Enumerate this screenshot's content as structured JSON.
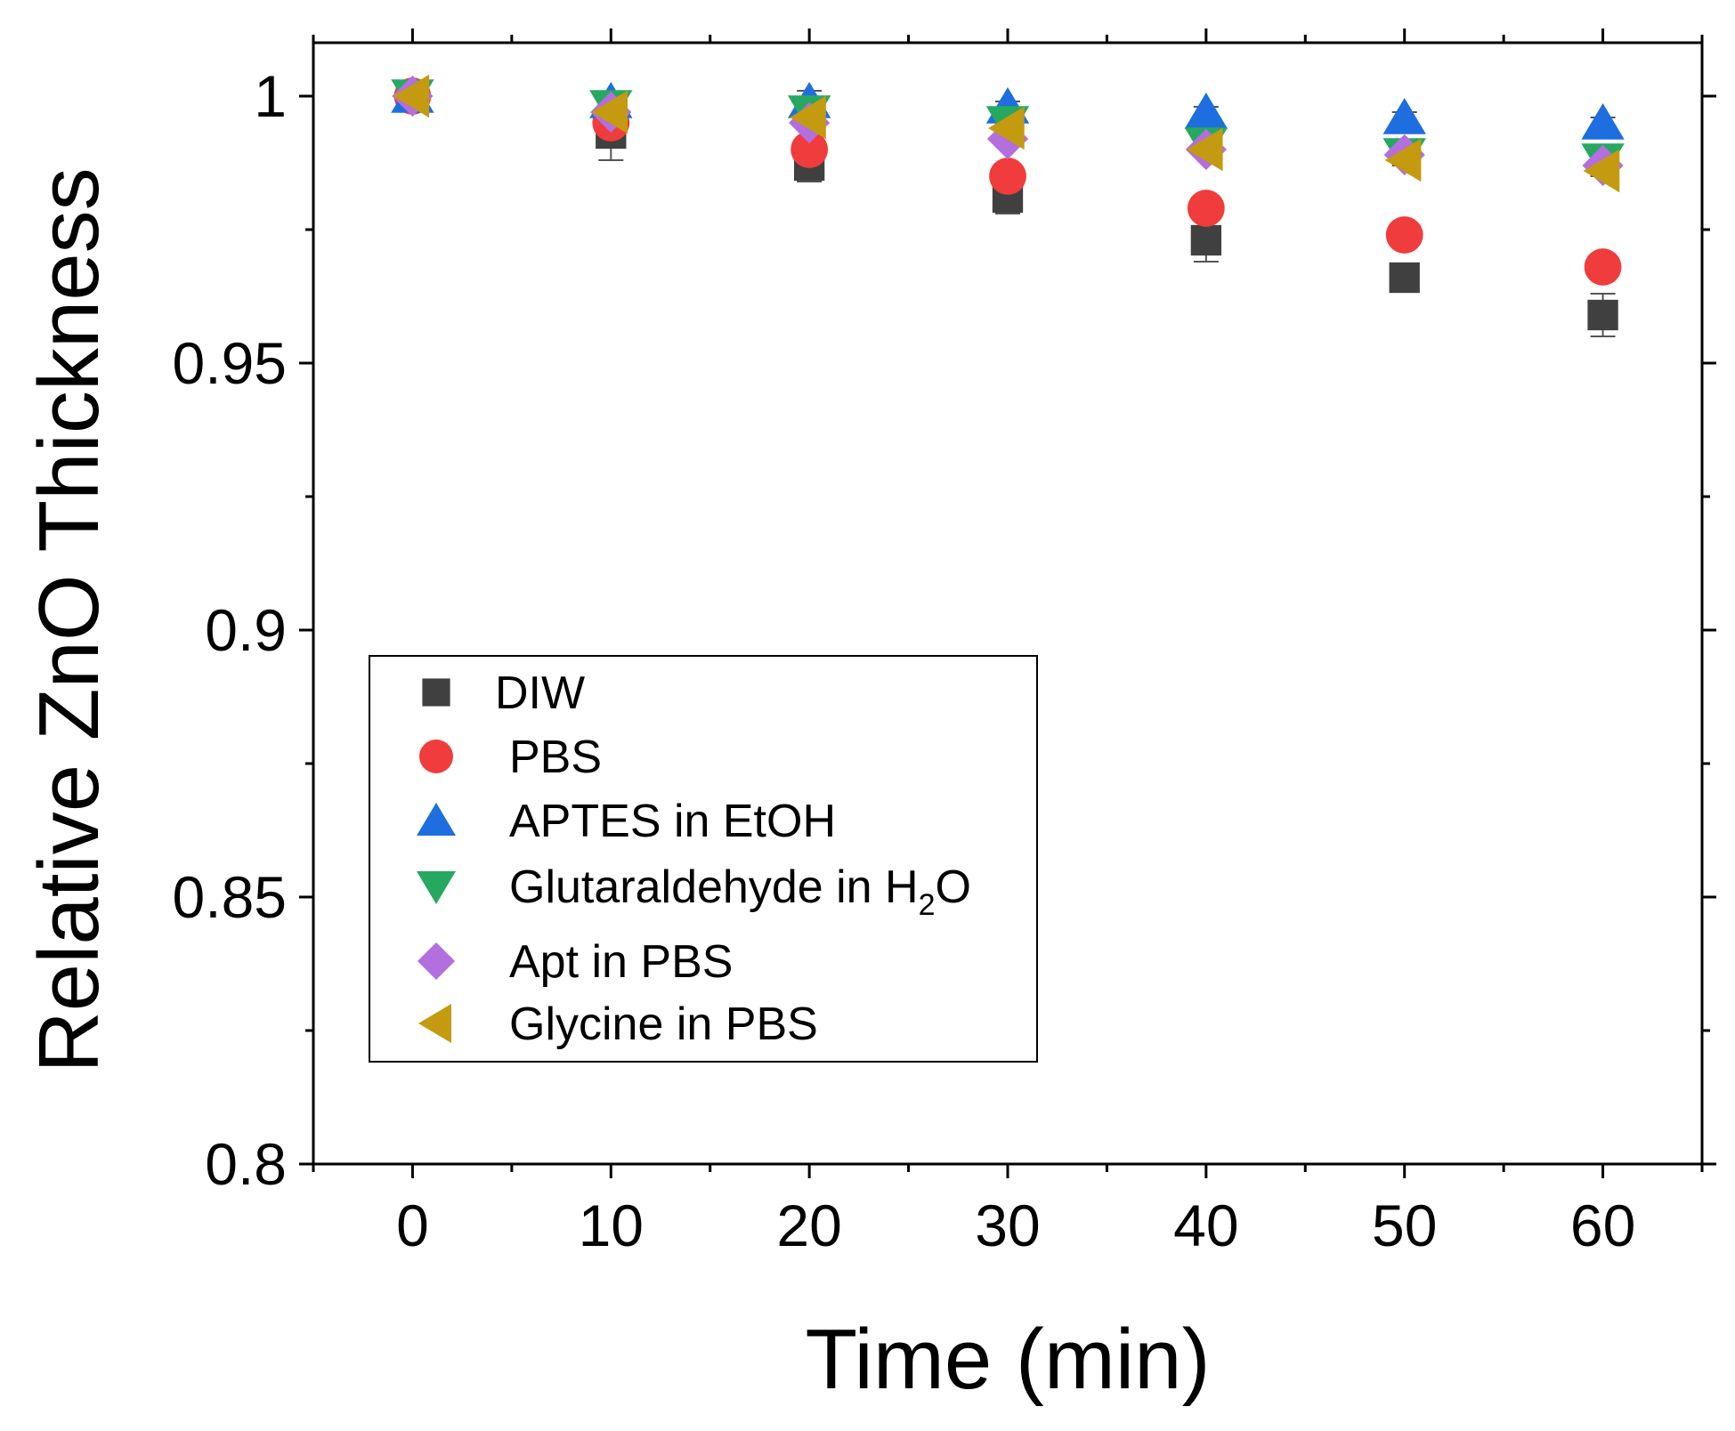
{
  "chart_data": {
    "type": "scatter",
    "title": "",
    "xlabel": "Time (min)",
    "ylabel": "Relative ZnO Thickness",
    "xlim": [
      -5,
      65
    ],
    "ylim": [
      0.8,
      1.01
    ],
    "xticks": [
      0,
      10,
      20,
      30,
      40,
      50,
      60
    ],
    "xtick_labels": [
      "0",
      "10",
      "20",
      "30",
      "40",
      "50",
      "60"
    ],
    "yticks": [
      0.8,
      0.85,
      0.9,
      0.95,
      1.0
    ],
    "ytick_labels": [
      "0.8",
      "0.85",
      "0.9",
      "0.95",
      "1"
    ],
    "grid": false,
    "legend_position": "lower-left",
    "x": [
      0,
      10,
      20,
      30,
      40,
      50,
      60
    ],
    "series": [
      {
        "name": "DIW",
        "marker": "square",
        "color": "#404040",
        "values": [
          1.0,
          0.993,
          0.987,
          0.981,
          0.973,
          0.966,
          0.959
        ],
        "errors": [
          0.001,
          0.005,
          0.003,
          0.003,
          0.004,
          0.002,
          0.004
        ]
      },
      {
        "name": "PBS",
        "marker": "circle",
        "color": "#f03c3c",
        "values": [
          1.0,
          0.995,
          0.99,
          0.985,
          0.979,
          0.974,
          0.968
        ],
        "errors": [
          0.001,
          0.002,
          0.002,
          0.002,
          0.002,
          0.002,
          0.002
        ]
      },
      {
        "name": "APTES in EtOH",
        "marker": "triangle-up",
        "color": "#1e6ee0",
        "values": [
          1.0,
          0.999,
          0.999,
          0.998,
          0.997,
          0.996,
          0.995
        ],
        "errors": [
          0.001,
          0.001,
          0.002,
          0.001,
          0.001,
          0.001,
          0.001
        ]
      },
      {
        "name": "Glutaraldehyde in H2O",
        "marker": "triangle-down",
        "color": "#27a860",
        "values": [
          1.0,
          0.998,
          0.997,
          0.995,
          0.991,
          0.989,
          0.988
        ],
        "errors": [
          0.001,
          0.001,
          0.001,
          0.001,
          0.001,
          0.001,
          0.001
        ]
      },
      {
        "name": "Apt in PBS",
        "marker": "diamond",
        "color": "#b36ee0",
        "values": [
          1.0,
          0.997,
          0.995,
          0.992,
          0.99,
          0.989,
          0.987
        ],
        "errors": [
          0.001,
          0.001,
          0.001,
          0.001,
          0.001,
          0.001,
          0.001
        ]
      },
      {
        "name": "Glycine in PBS",
        "marker": "triangle-left",
        "color": "#c49a10",
        "values": [
          1.0,
          0.997,
          0.996,
          0.994,
          0.99,
          0.988,
          0.986
        ],
        "errors": [
          0.001,
          0.001,
          0.001,
          0.001,
          0.001,
          0.001,
          0.001
        ]
      }
    ],
    "legend": {
      "entries": [
        {
          "text": "DIW",
          "subscript": "",
          "suffix": ""
        },
        {
          "text": "PBS",
          "subscript": "",
          "suffix": ""
        },
        {
          "text": "APTES in EtOH",
          "subscript": "",
          "suffix": ""
        },
        {
          "text": "Glutaraldehyde in H",
          "subscript": "2",
          "suffix": "O"
        },
        {
          "text": "Apt in PBS",
          "subscript": "",
          "suffix": ""
        },
        {
          "text": "Glycine in PBS",
          "subscript": "",
          "suffix": ""
        }
      ]
    }
  }
}
